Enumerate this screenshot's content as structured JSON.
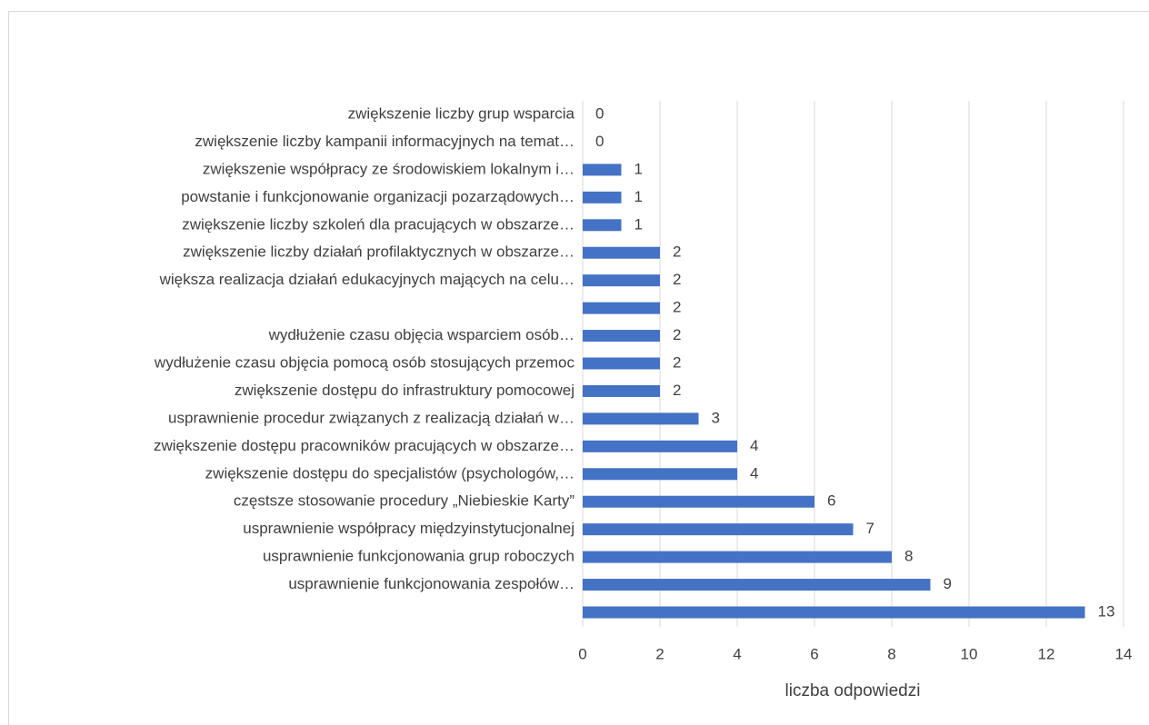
{
  "chart_data": {
    "type": "barh",
    "categories": [
      "zwiększenie liczby grup wsparcia",
      "zwiększenie liczby kampanii informacyjnych na temat…",
      "zwiększenie współpracy ze środowiskiem lokalnym i…",
      "powstanie i funkcjonowanie organizacji pozarządowych…",
      "zwiększenie liczby szkoleń dla pracujących w obszarze…",
      "zwiększenie liczby działań profilaktycznych w obszarze…",
      "większa realizacja działań edukacyjnych mających na celu…",
      null,
      "wydłużenie czasu objęcia wsparciem osób…",
      "wydłużenie czasu objęcia pomocą osób stosujących przemoc",
      "zwiększenie dostępu do infrastruktury pomocowej",
      "usprawnienie procedur związanych z realizacją działań w…",
      "zwiększenie dostępu pracowników pracujących w obszarze…",
      "zwiększenie dostępu do specjalistów (psychologów,…",
      "częstsze stosowanie procedury „Niebieskie Karty”",
      "usprawnienie współpracy międzyinstytucjonalnej",
      "usprawnienie funkcjonowania grup roboczych",
      "usprawnienie funkcjonowania zespołów…",
      null
    ],
    "values": [
      0,
      0,
      1,
      1,
      1,
      2,
      2,
      2,
      2,
      2,
      2,
      3,
      4,
      4,
      6,
      7,
      8,
      9,
      13
    ],
    "color": "#4472c4",
    "xlabel": "liczba odpowiedzi",
    "xlim": [
      0,
      14
    ],
    "xticks": [
      0,
      2,
      4,
      6,
      8,
      10,
      12,
      14
    ],
    "grid": true
  }
}
